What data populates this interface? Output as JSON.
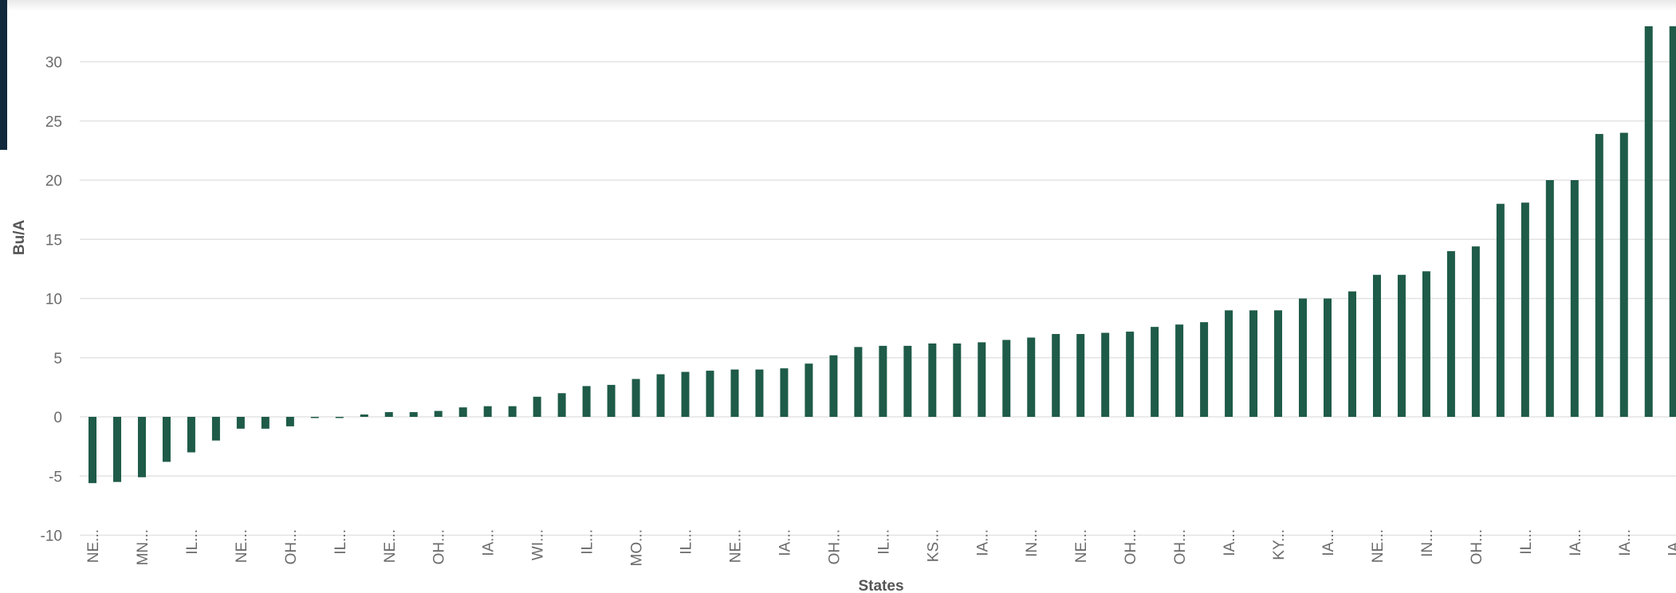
{
  "chart_data": {
    "type": "bar",
    "title": "",
    "xlabel": "States",
    "ylabel": "Bu/A",
    "ylim": [
      -10,
      33
    ],
    "yticks": [
      30,
      25,
      20,
      15,
      10,
      5,
      0,
      -5,
      -10
    ],
    "grid": true,
    "legend": "none",
    "color": "#1e5b48",
    "categories": [
      "NE...",
      "",
      "MN...",
      "",
      "IL...",
      "",
      "NE...",
      "",
      "OH...",
      "",
      "IL...",
      "",
      "NE...",
      "",
      "OH...",
      "",
      "IA...",
      "",
      "WI...",
      "",
      "IL...",
      "",
      "MO...",
      "",
      "IL...",
      "",
      "NE...",
      "",
      "IA...",
      "",
      "OH...",
      "",
      "IL...",
      "",
      "KS...",
      "",
      "IA...",
      "",
      "IN...",
      "",
      "NE...",
      "",
      "OH...",
      "",
      "OH...",
      "",
      "IA...",
      "",
      "KY...",
      "",
      "IA...",
      "",
      "NE...",
      "",
      "IN...",
      "",
      "OH...",
      "",
      "IL...",
      "",
      "IA...",
      "",
      "IA...",
      "",
      "IA..."
    ],
    "values": [
      -5.6,
      -5.5,
      -5.1,
      -3.8,
      -3.0,
      -2.0,
      -1.0,
      -1.0,
      -0.8,
      -0.1,
      -0.1,
      0.2,
      0.4,
      0.4,
      0.5,
      0.8,
      0.9,
      0.9,
      1.7,
      2.0,
      2.6,
      2.7,
      3.2,
      3.6,
      3.8,
      3.9,
      4.0,
      4.0,
      4.1,
      4.5,
      5.2,
      5.9,
      6.0,
      6.0,
      6.2,
      6.2,
      6.3,
      6.5,
      6.7,
      7.0,
      7.0,
      7.1,
      7.2,
      7.6,
      7.8,
      8.0,
      9.0,
      9.0,
      9.0,
      10.0,
      10.0,
      10.6,
      12.0,
      12.0,
      12.3,
      14.0,
      14.4,
      18.0,
      18.1,
      20.0,
      20.0,
      23.9,
      24.0,
      34.0,
      34.0
    ]
  }
}
